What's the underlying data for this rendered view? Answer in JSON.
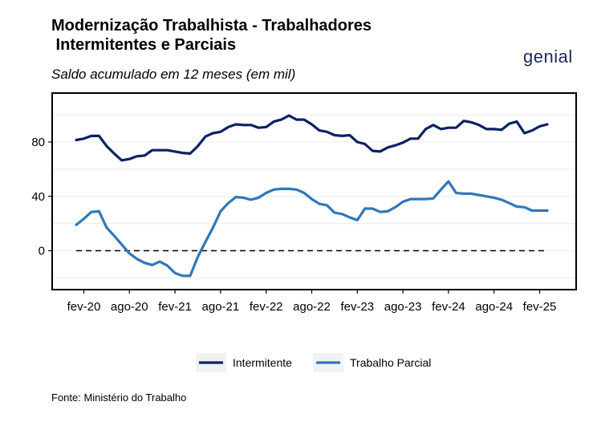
{
  "header": {
    "title": "Modernização Trabalhista - Trabalhadores\n Intermitentes e Parciais",
    "subtitle": "Saldo acumulado em 12 meses (em mil)",
    "logo_text": "genial"
  },
  "footer": {
    "source": "Fonte: Ministério do Trabalho"
  },
  "chart_data": {
    "type": "line",
    "title": "Modernização Trabalhista - Trabalhadores Intermitentes e Parciais",
    "subtitle": "Saldo acumulado em 12 meses (em mil)",
    "xlabel": "",
    "ylabel": "",
    "ylim": [
      -30,
      115
    ],
    "yticks": [
      0,
      40,
      80
    ],
    "grid": true,
    "legend_position": "bottom",
    "x_tick_labels": [
      "fev-20",
      "ago-20",
      "fev-21",
      "ago-21",
      "fev-22",
      "ago-22",
      "fev-23",
      "ago-23",
      "fev-24",
      "ago-24",
      "fev-25"
    ],
    "x": [
      "jan-20",
      "fev-20",
      "mar-20",
      "abr-20",
      "mai-20",
      "jun-20",
      "jul-20",
      "ago-20",
      "set-20",
      "out-20",
      "nov-20",
      "dez-20",
      "jan-21",
      "fev-21",
      "mar-21",
      "abr-21",
      "mai-21",
      "jun-21",
      "jul-21",
      "ago-21",
      "set-21",
      "out-21",
      "nov-21",
      "dez-21",
      "jan-22",
      "fev-22",
      "mar-22",
      "abr-22",
      "mai-22",
      "jun-22",
      "jul-22",
      "ago-22",
      "set-22",
      "out-22",
      "nov-22",
      "dez-22",
      "jan-23",
      "fev-23",
      "mar-23",
      "abr-23",
      "mai-23",
      "jun-23",
      "jul-23",
      "ago-23",
      "set-23",
      "out-23",
      "nov-23",
      "dez-23",
      "jan-24",
      "fev-24",
      "mar-24",
      "abr-24",
      "mai-24",
      "jun-24",
      "jul-24",
      "ago-24",
      "set-24",
      "out-24",
      "nov-24",
      "dez-24",
      "jan-25",
      "fev-25",
      "mar-25"
    ],
    "series": [
      {
        "name": "Intermitente",
        "color": "#0b2264",
        "values": [
          81.5,
          82.5,
          84.5,
          84.5,
          77,
          71.5,
          66.5,
          67.5,
          69.5,
          70,
          74,
          74,
          74,
          73,
          72,
          71.5,
          77,
          84,
          86.5,
          87.5,
          91,
          93,
          92.5,
          92.5,
          90.5,
          91,
          95,
          96.5,
          99.5,
          96.5,
          96.5,
          93,
          88.5,
          87.5,
          85,
          84.5,
          85,
          80,
          78.5,
          73.5,
          73,
          76,
          77.5,
          79.5,
          82.5,
          82.5,
          89.5,
          92.5,
          89.5,
          90.5,
          90.5,
          95.5,
          94.5,
          92.5,
          89.5,
          89.5,
          89,
          93.5,
          95,
          86.5,
          88.5,
          91.5,
          93
        ]
      },
      {
        "name": "Trabalho Parcial",
        "color": "#2e78b8",
        "values": [
          19,
          23.5,
          28.5,
          29,
          17,
          11,
          4.5,
          -2,
          -6,
          -9,
          -10.5,
          -8,
          -11,
          -16.5,
          -18.5,
          -18.5,
          -4.5,
          6.5,
          17,
          29,
          35,
          39.5,
          39,
          37.5,
          39,
          42.5,
          45,
          45.5,
          45.5,
          45,
          42.5,
          38,
          34.5,
          33.5,
          28,
          27,
          24.5,
          22.5,
          31,
          31,
          28.5,
          29,
          32,
          36,
          38,
          38,
          38,
          38.5,
          45,
          51,
          42.5,
          42,
          42,
          41,
          40,
          39,
          37.5,
          35,
          32.5,
          32,
          29.5,
          29.5,
          29.5
        ]
      }
    ]
  }
}
